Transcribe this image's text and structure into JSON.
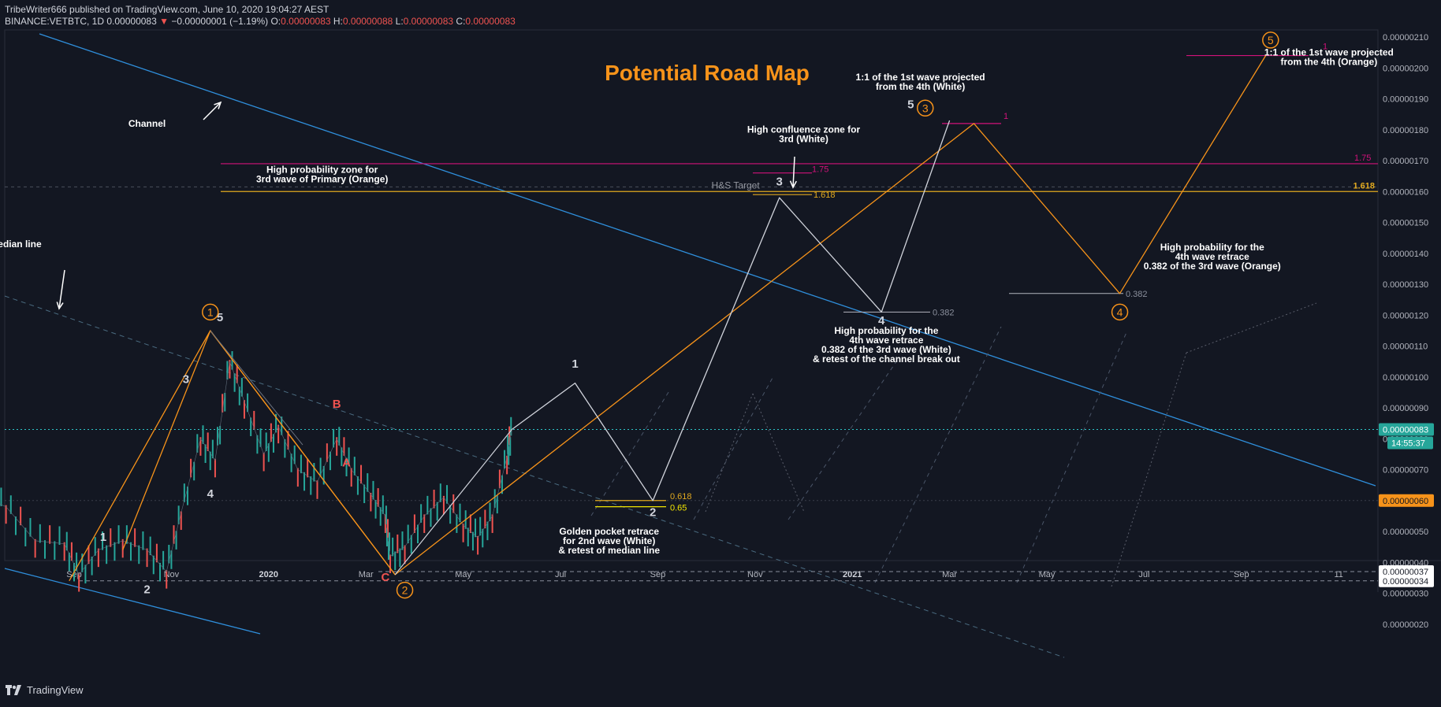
{
  "header": {
    "line1": "TribeWriter666 published on TradingView.com, June 10, 2020 19:04:27 AEST",
    "symbol": "BINANCE:VETBTC, 1D",
    "last": "0.00000083",
    "change": "−0.00000001 (−1.19%)",
    "o_label": "O:",
    "o": "0.00000083",
    "h_label": "H:",
    "h": "0.00000088",
    "l_label": "L:",
    "l": "0.00000083",
    "c_label": "C:",
    "c": "0.00000083"
  },
  "footer": {
    "brand": "TradingView"
  },
  "chart_data": {
    "type": "candlestick",
    "title": "Potential Road Map",
    "ylim": [
      1.4e-07,
      2.13e-06
    ],
    "y_ticks": [
      "0.00000210",
      "0.00000200",
      "0.00000190",
      "0.00000180",
      "0.00000170",
      "0.00000160",
      "0.00000150",
      "0.00000140",
      "0.00000130",
      "0.00000120",
      "0.00000110",
      "0.00000100",
      "0.00000090",
      "0.00000080",
      "0.00000070",
      "0.00000060",
      "0.00000050",
      "0.00000040",
      "0.00000030",
      "0.00000020"
    ],
    "y_tick_values": [
      210,
      200,
      190,
      180,
      170,
      160,
      150,
      140,
      130,
      120,
      110,
      100,
      90,
      80,
      70,
      60,
      50,
      40,
      30,
      20
    ],
    "x_ticks": [
      {
        "label": "Sep",
        "m": 3
      },
      {
        "label": "Nov",
        "m": 5
      },
      {
        "label": "2020",
        "m": 7
      },
      {
        "label": "Mar",
        "m": 9
      },
      {
        "label": "May",
        "m": 11
      },
      {
        "label": "Jul",
        "m": 13
      },
      {
        "label": "Sep",
        "m": 15
      },
      {
        "label": "Nov",
        "m": 17
      },
      {
        "label": "2021",
        "m": 19
      },
      {
        "label": "Mar",
        "m": 21
      },
      {
        "label": "May",
        "m": 23
      },
      {
        "label": "Jul",
        "m": 25
      },
      {
        "label": "Sep",
        "m": 27
      },
      {
        "label": "11",
        "m": 29
      }
    ],
    "x_axis_note": "m = months since 2019-06-01",
    "price_path": [
      [
        1.0,
        62
      ],
      [
        1.6,
        58
      ],
      [
        2.2,
        47
      ],
      [
        2.8,
        46
      ],
      [
        3.1,
        36
      ],
      [
        3.5,
        44
      ],
      [
        4.0,
        47
      ],
      [
        4.5,
        44
      ],
      [
        4.9,
        37
      ],
      [
        5.2,
        56
      ],
      [
        5.6,
        80
      ],
      [
        5.9,
        73
      ],
      [
        6.2,
        105
      ],
      [
        6.5,
        92
      ],
      [
        6.9,
        75
      ],
      [
        7.2,
        84
      ],
      [
        7.6,
        70
      ],
      [
        8.0,
        66
      ],
      [
        8.4,
        80
      ],
      [
        8.7,
        70
      ],
      [
        9.1,
        62
      ],
      [
        9.4,
        55
      ],
      [
        9.5,
        42
      ],
      [
        9.8,
        45
      ],
      [
        10.2,
        55
      ],
      [
        10.6,
        61
      ],
      [
        11.0,
        52
      ],
      [
        11.3,
        48
      ],
      [
        11.6,
        55
      ],
      [
        11.9,
        74
      ],
      [
        12.0,
        83
      ]
    ],
    "last_price": 83,
    "last_price_label": "0.00000083",
    "countdown": "14:55:37",
    "price_badges": [
      {
        "label": "0.00000083",
        "value": 83
      },
      {
        "label": "0.00000060",
        "value": 60
      },
      {
        "label": "0.00000037",
        "value": 37
      },
      {
        "label": "0.00000034",
        "value": 34
      }
    ],
    "white_wave": [
      [
        12.0,
        83
      ],
      [
        13.3,
        98
      ],
      [
        14.9,
        60
      ],
      [
        17.5,
        158
      ],
      [
        19.6,
        121
      ],
      [
        21.0,
        183
      ]
    ],
    "orange_wave": [
      [
        2.9,
        34
      ],
      [
        5.8,
        115
      ],
      [
        9.6,
        36
      ],
      [
        21.5,
        182
      ],
      [
        24.5,
        127
      ],
      [
        27.5,
        204
      ]
    ],
    "primary_wave_abc": [
      [
        5.8,
        115
      ],
      [
        7.7,
        78
      ],
      [
        9.6,
        36
      ]
    ],
    "fib_levels": [
      {
        "label": "1.75",
        "value": 169
      },
      {
        "label": "1.618",
        "value": 160
      },
      {
        "label": "0.382",
        "value": 121
      },
      {
        "label": "0.382",
        "value": 127
      },
      {
        "label": "0.618",
        "value": 60
      },
      {
        "label": "0.65",
        "value": 58
      },
      {
        "label": "1",
        "value": 182
      },
      {
        "label": "1",
        "value": 204
      }
    ],
    "wave_labels": [
      {
        "text": "1",
        "x": 3.6,
        "y": 47
      },
      {
        "text": "2",
        "x": 4.5,
        "y": 30
      },
      {
        "text": "3",
        "x": 5.3,
        "y": 98
      },
      {
        "text": "4",
        "x": 5.8,
        "y": 61
      },
      {
        "text": "5",
        "x": 6.0,
        "y": 118
      },
      {
        "text": "1",
        "x": 13.3,
        "y": 103
      },
      {
        "text": "2",
        "x": 14.9,
        "y": 55
      },
      {
        "text": "3",
        "x": 17.5,
        "y": 162
      },
      {
        "text": "4",
        "x": 19.6,
        "y": 117
      },
      {
        "text": "5",
        "x": 20.2,
        "y": 187
      },
      {
        "text": "A",
        "x": 8.6,
        "y": 71
      },
      {
        "text": "B",
        "x": 8.4,
        "y": 90
      },
      {
        "text": "C",
        "x": 9.4,
        "y": 34
      }
    ],
    "circled_labels": [
      {
        "text": "1",
        "x": 5.8,
        "y": 121
      },
      {
        "text": "2",
        "x": 9.8,
        "y": 31
      },
      {
        "text": "3",
        "x": 20.5,
        "y": 187
      },
      {
        "text": "4",
        "x": 24.5,
        "y": 121
      },
      {
        "text": "5",
        "x": 27.6,
        "y": 209
      }
    ],
    "annotations": [
      {
        "lines": [
          "Channel"
        ],
        "x": 4.5,
        "y": 181
      },
      {
        "lines": [
          "Median line"
        ],
        "x": 1.8,
        "y": 142
      },
      {
        "lines": [
          "High probability zone for",
          "3rd wave of Primary (Orange)"
        ],
        "x": 8.1,
        "y": 166
      },
      {
        "lines": [
          "H&S Target"
        ],
        "x": 16.6,
        "y": 161
      },
      {
        "lines": [
          "High confluence zone for",
          "3rd (White)"
        ],
        "x": 18.0,
        "y": 179
      },
      {
        "lines": [
          "1:1 of the 1st wave projected",
          "from the 4th (White)"
        ],
        "x": 20.4,
        "y": 196
      },
      {
        "lines": [
          "1:1 of the 1st wave projected",
          "from the 4th (Orange)"
        ],
        "x": 28.8,
        "y": 204
      },
      {
        "lines": [
          "High probability for the",
          "4th wave retrace",
          "0.382 of the 3rd wave (Orange)"
        ],
        "x": 26.4,
        "y": 141
      },
      {
        "lines": [
          "High probability for the",
          "4th wave retrace",
          "0.382 of the 3rd wave (White)",
          "& retest of the channel break out"
        ],
        "x": 19.7,
        "y": 114
      },
      {
        "lines": [
          "Golden pocket retrace",
          "for 2nd wave (White)",
          "& retest of median line"
        ],
        "x": 14.0,
        "y": 49
      }
    ]
  }
}
